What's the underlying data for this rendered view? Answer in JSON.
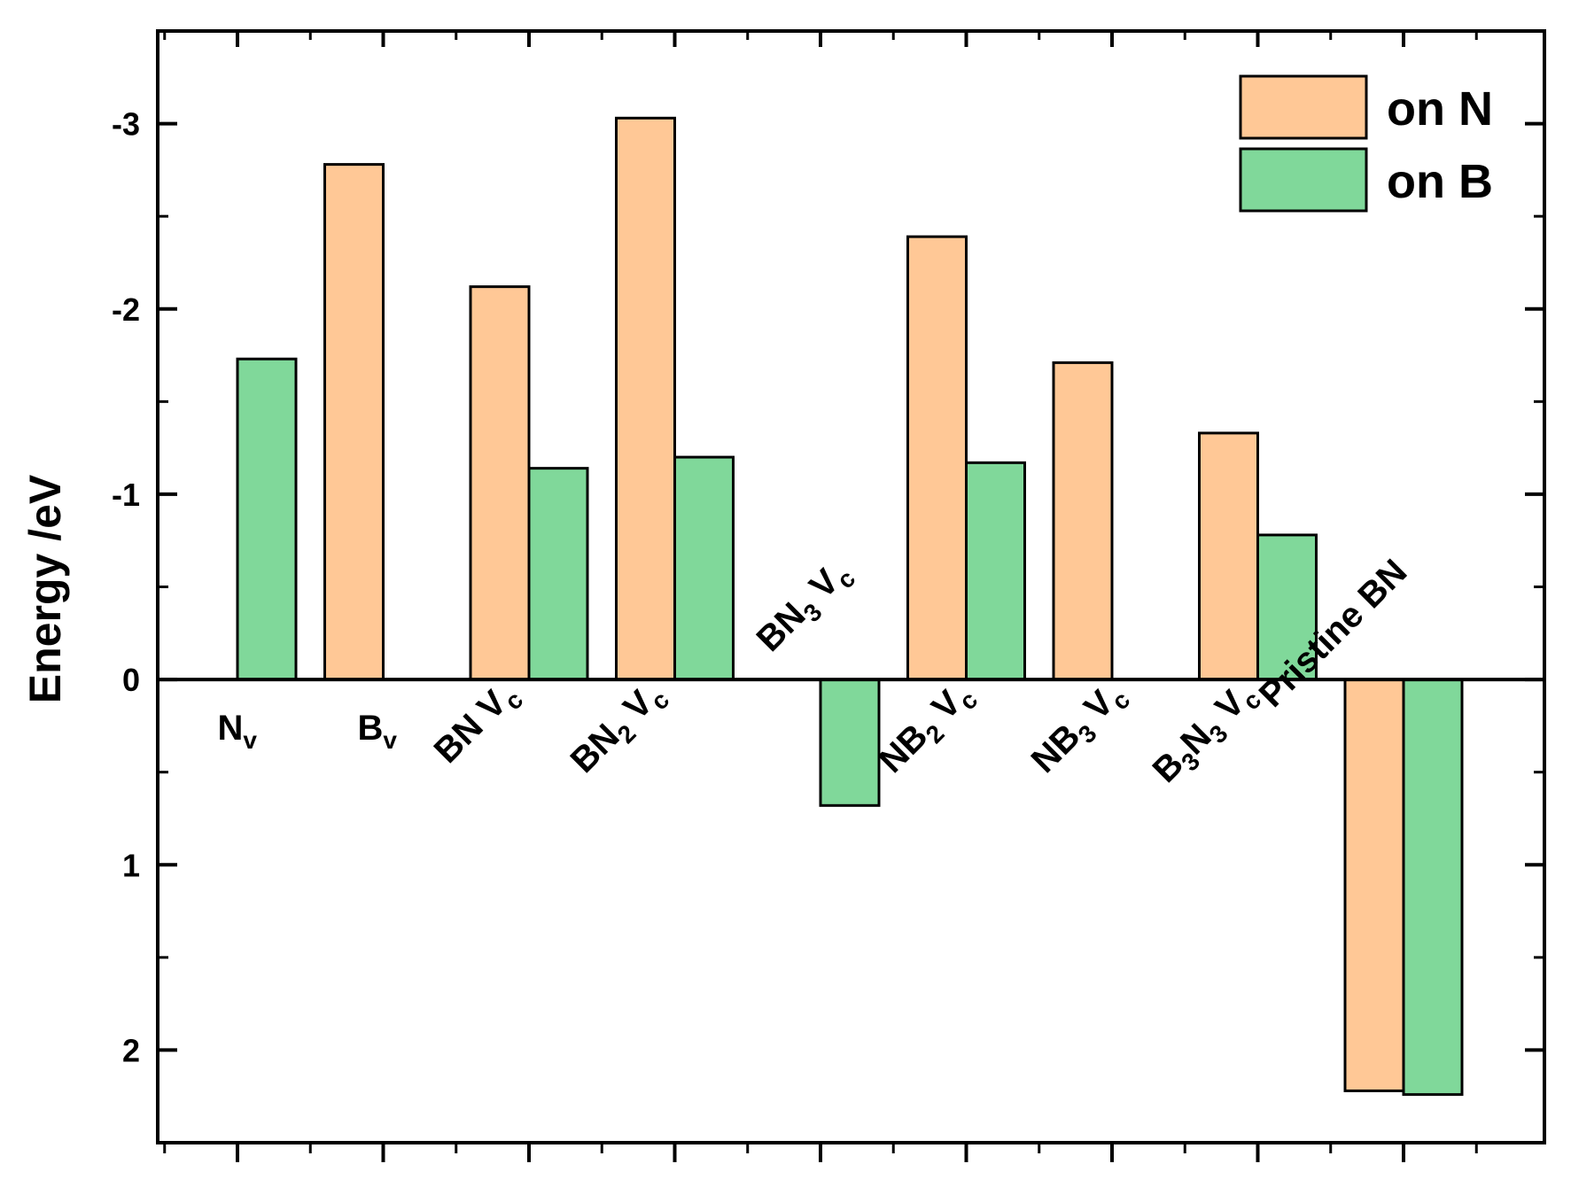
{
  "chart_data": {
    "type": "bar",
    "ylabel": "Energy /eV",
    "y_axis_inverted": true,
    "ylim": [
      2.5,
      -3.5
    ],
    "yticks": [
      {
        "value": -3,
        "label": "-3"
      },
      {
        "value": -2,
        "label": "-2"
      },
      {
        "value": -1,
        "label": "-1"
      },
      {
        "value": 0,
        "label": "0"
      },
      {
        "value": 1,
        "label": "1"
      },
      {
        "value": 2,
        "label": "2"
      }
    ],
    "grid": false,
    "legend_position": "top-right",
    "categories": [
      {
        "id": "Nv",
        "main": "N",
        "sub": "v",
        "rest": ""
      },
      {
        "id": "Bv",
        "main": "B",
        "sub": "v",
        "rest": ""
      },
      {
        "id": "BNVc",
        "main": "BN V",
        "sub": "c",
        "rest": ""
      },
      {
        "id": "BN2Vc",
        "main": "BN",
        "sub": "2",
        "rest": " V",
        "sub2": "c"
      },
      {
        "id": "BN3Vc",
        "main": "BN",
        "sub": "3",
        "rest": " V",
        "sub2": "c"
      },
      {
        "id": "NB2Vc",
        "main": "NB",
        "sub": "2",
        "rest": " V",
        "sub2": "c"
      },
      {
        "id": "NB3Vc",
        "main": "NB",
        "sub": "3",
        "rest": " V",
        "sub2": "c"
      },
      {
        "id": "B3N3Vc",
        "main": "B",
        "sub": "3",
        "rest": "N",
        "sub2": "3",
        "rest2": " V",
        "sub3": "c"
      },
      {
        "id": "Pristine",
        "main": "Pristine BN"
      }
    ],
    "series": [
      {
        "name": "on N",
        "color": "#FFC896",
        "values": [
          null,
          -2.78,
          -2.12,
          -3.03,
          null,
          -2.39,
          -1.71,
          -1.33,
          2.22
        ]
      },
      {
        "name": "on B",
        "color": "#80D89A",
        "values": [
          -1.73,
          null,
          -1.14,
          -1.2,
          0.68,
          -1.17,
          null,
          -0.78,
          2.24
        ]
      }
    ]
  }
}
